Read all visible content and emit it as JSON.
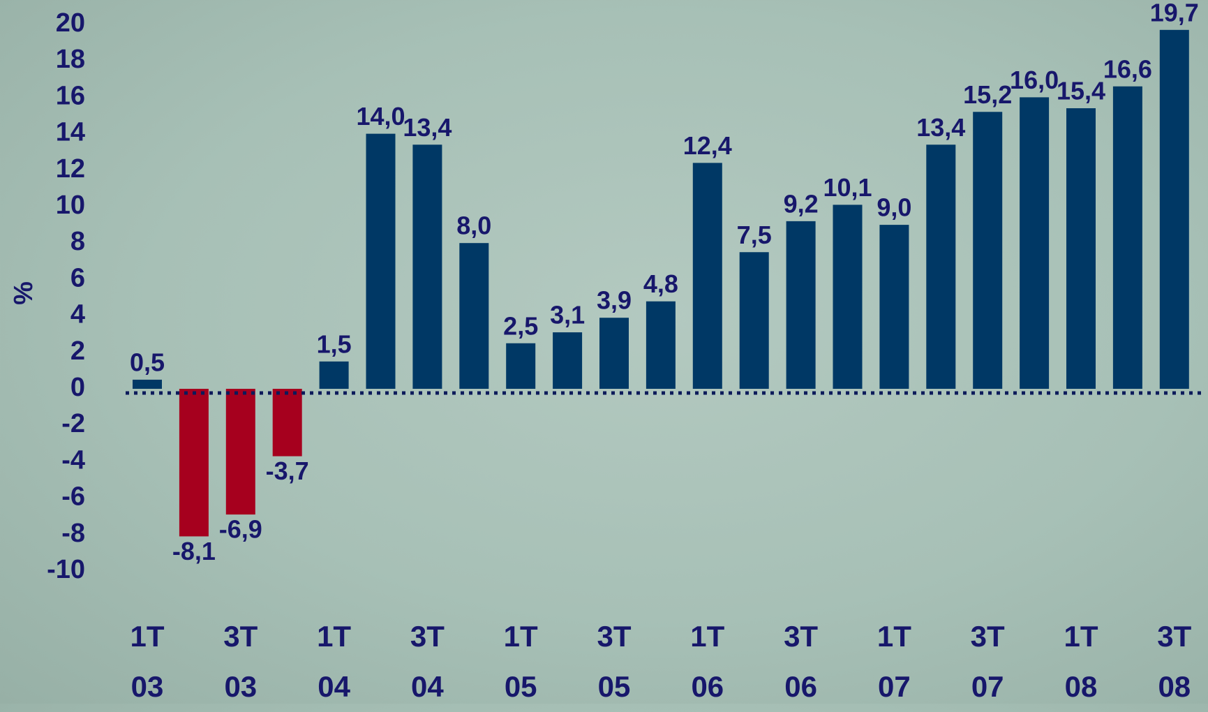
{
  "chart_data": {
    "type": "bar",
    "y_label": "%",
    "categories": [
      "1T\n03",
      null,
      "3T\n03",
      null,
      "1T\n04",
      null,
      "3T\n04",
      null,
      "1T\n05",
      null,
      "3T\n05",
      null,
      "1T\n06",
      null,
      "3T\n06",
      null,
      "1T\n07",
      null,
      "3T\n07",
      null,
      "1T\n08",
      null,
      "3T\n08"
    ],
    "values": [
      0.5,
      -8.1,
      -6.9,
      -3.7,
      1.5,
      14.0,
      13.4,
      8.0,
      2.5,
      3.1,
      3.9,
      4.8,
      12.4,
      7.5,
      9.2,
      10.1,
      9.0,
      13.4,
      15.2,
      16.0,
      15.4,
      16.6,
      19.7
    ],
    "value_labels": [
      "0,5",
      "-8,1",
      "-6,9",
      "-3,7",
      "1,5",
      "14,0",
      "13,4",
      "8,0",
      "2,5",
      "3,1",
      "3,9",
      "4,8",
      "12,4",
      "7,5",
      "9,2",
      "10,1",
      "9,0",
      "13,4",
      "15,2",
      "16,0",
      "15,4",
      "16,6",
      "19,7"
    ],
    "color": "#003865",
    "negative_color": "#a6001e",
    "ylim": [
      -10,
      20
    ],
    "yticks": [
      -10,
      -8,
      -6,
      -4,
      -2,
      0,
      2,
      4,
      6,
      8,
      10,
      12,
      14,
      16,
      18,
      20
    ],
    "grid": false
  }
}
